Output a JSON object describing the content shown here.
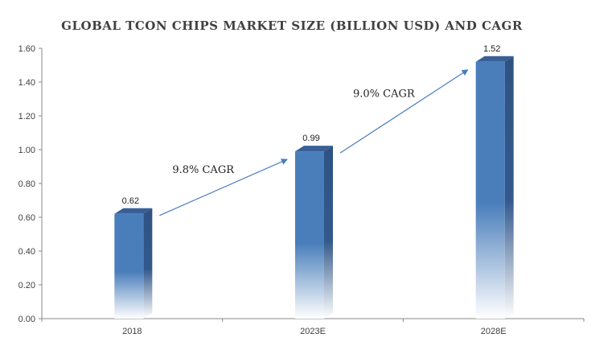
{
  "chart_data": {
    "type": "bar",
    "title": "GLOBAL TCON CHIPS MARKET SIZE (BILLION USD) AND CAGR",
    "categories": [
      "2018",
      "2023E",
      "2028E"
    ],
    "values": [
      0.62,
      0.99,
      1.52
    ],
    "value_labels": [
      "0.62",
      "0.99",
      "1.52"
    ],
    "y_ticks": [
      "0.00",
      "0.20",
      "0.40",
      "0.60",
      "0.80",
      "1.00",
      "1.20",
      "1.40",
      "1.60"
    ],
    "ylim": [
      0,
      1.6
    ],
    "xlabel": "",
    "ylabel": "",
    "grid": false,
    "legend": "none",
    "bar_color": "#4a7ebb",
    "annotations": [
      {
        "text": "9.8% CAGR",
        "from": "2018",
        "to": "2023E"
      },
      {
        "text": "9.0% CAGR",
        "from": "2023E",
        "to": "2028E"
      }
    ],
    "arrow_color": "#4a7ebb"
  }
}
